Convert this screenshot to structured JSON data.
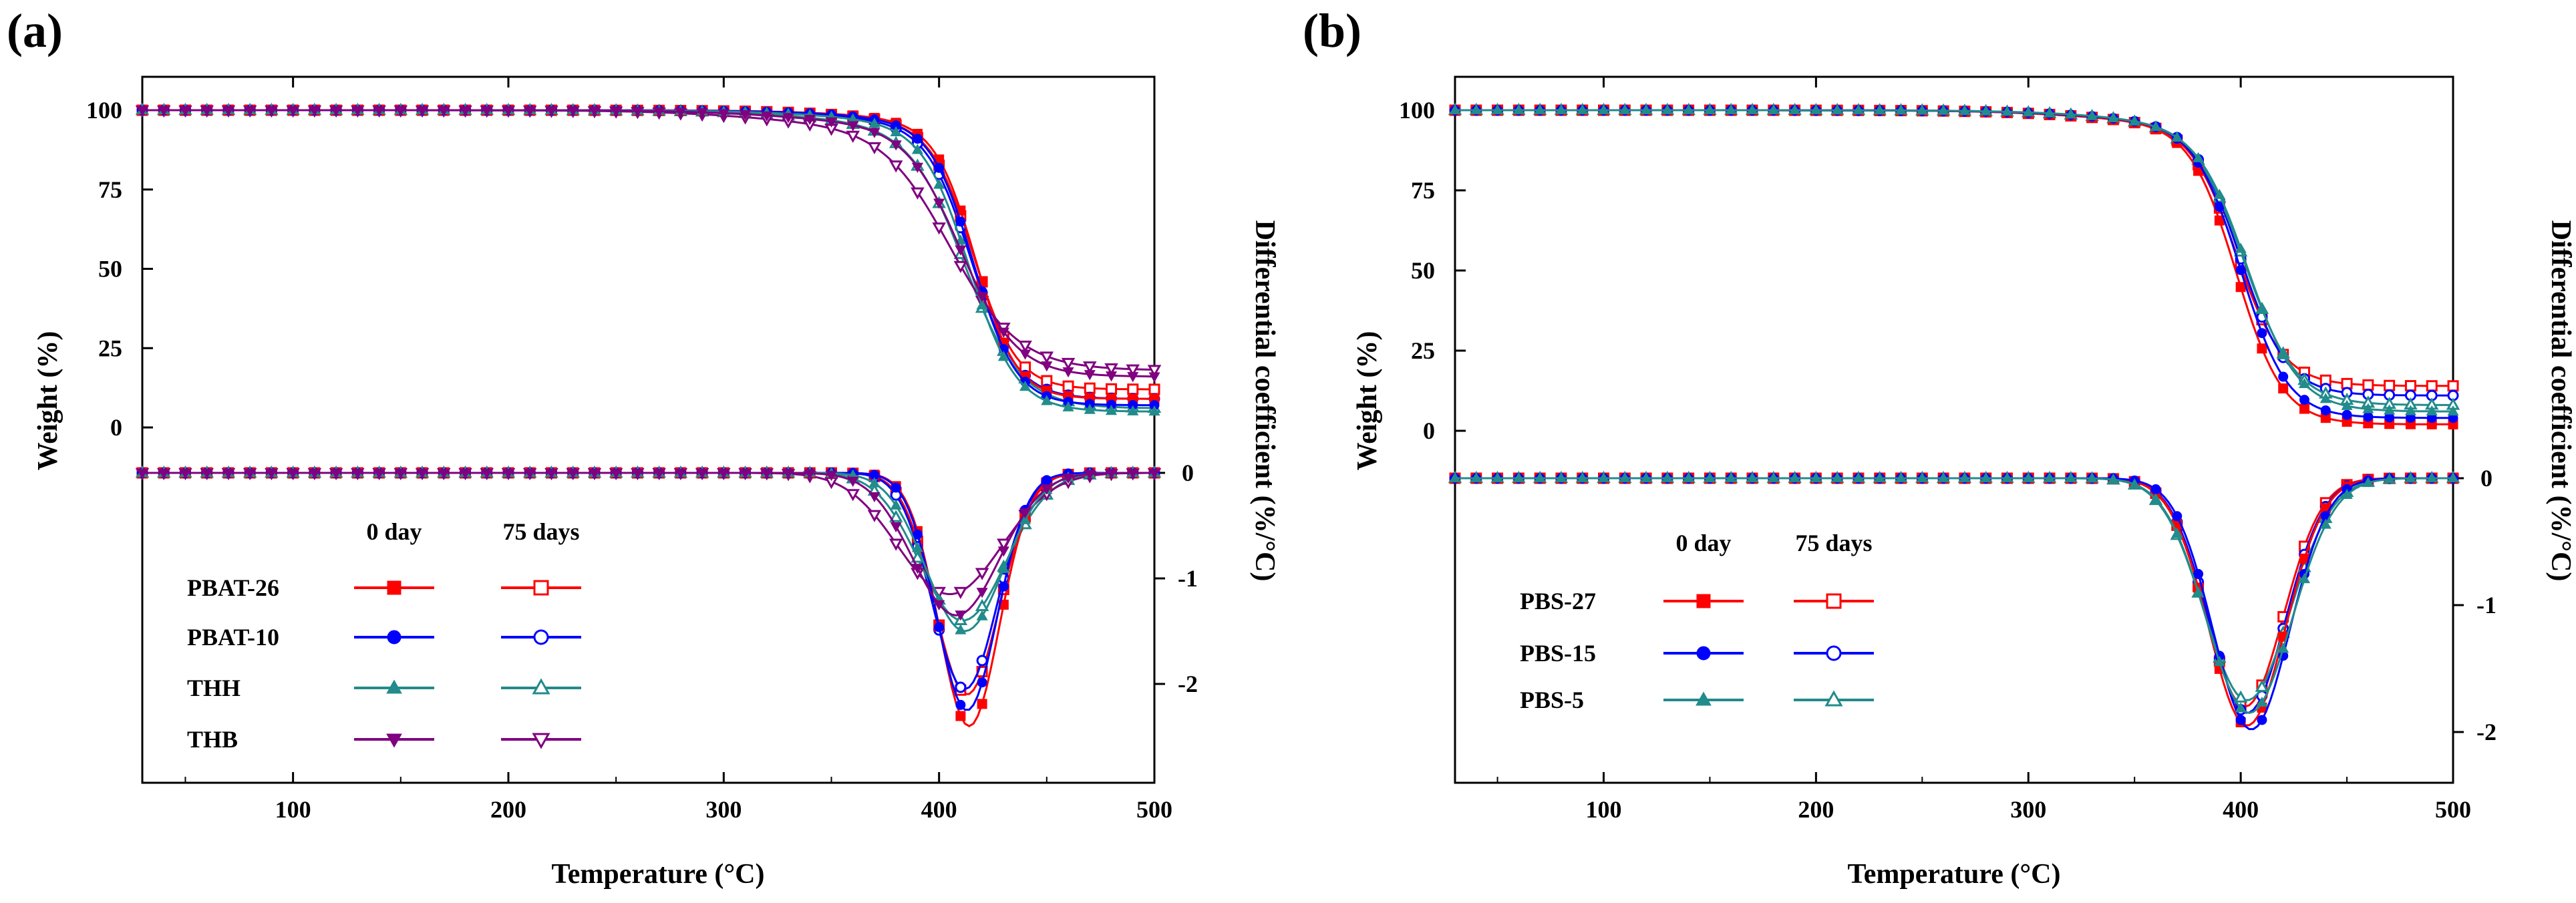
{
  "chart_data": [
    {
      "type": "line",
      "panel_label": "(a)",
      "xlabel": "Temperature (°C)",
      "ylabel_left": "Weight (%)",
      "ylabel_right": "Differential coefficient (%/°C)",
      "xlim": [
        30,
        500
      ],
      "xticks": [
        100,
        200,
        300,
        400,
        500
      ],
      "weight_ylim": [
        -5,
        105
      ],
      "weight_yticks": [
        0,
        25,
        50,
        75,
        100
      ],
      "deriv_yticks": [
        0,
        -1,
        -2
      ],
      "legend": {
        "header_0": "0 day",
        "header_75": "75 days",
        "placement": "lower-left"
      },
      "series": [
        {
          "name": "PBAT-26",
          "color": "#ff0000",
          "marker": "square",
          "tg": {
            "T_onset": 375,
            "T_mid": 417,
            "width": 9.5,
            "residue": 9
          },
          "dtg": {
            "peak_T": 414,
            "peak": -2.4,
            "width": 14
          }
        },
        {
          "name": "PBAT-10",
          "color": "#0000ff",
          "marker": "circle",
          "tg": {
            "T_onset": 370,
            "T_mid": 416,
            "width": 10,
            "residue": 7
          },
          "dtg": {
            "peak_T": 413,
            "peak": -2.25,
            "width": 14
          }
        },
        {
          "name": "THH",
          "color": "#228b8b",
          "marker": "triangle-up",
          "tg": {
            "T_onset": 355,
            "T_mid": 414,
            "width": 11,
            "residue": 5
          },
          "dtg": {
            "peak_T": 412,
            "peak": -1.5,
            "width": 18
          }
        },
        {
          "name": "THB",
          "color": "#800080",
          "marker": "triangle-down",
          "tg": {
            "T_onset": 330,
            "T_mid": 410,
            "width": 13,
            "residue": 16
          },
          "dtg": {
            "peak_T": 408,
            "peak": -1.35,
            "width": 20
          }
        }
      ],
      "series_75": [
        {
          "name": "PBAT-26",
          "color": "#ff0000",
          "marker": "square-open",
          "tg": {
            "T_onset": 370,
            "T_mid": 416,
            "width": 10,
            "residue": 12
          },
          "dtg": {
            "peak_T": 413,
            "peak": -2.1,
            "width": 15
          }
        },
        {
          "name": "PBAT-10",
          "color": "#0000ff",
          "marker": "circle-open",
          "tg": {
            "T_onset": 362,
            "T_mid": 415,
            "width": 10.5,
            "residue": 9
          },
          "dtg": {
            "peak_T": 412,
            "peak": -2.05,
            "width": 15
          }
        },
        {
          "name": "THH",
          "color": "#228b8b",
          "marker": "triangle-up-open",
          "tg": {
            "T_onset": 340,
            "T_mid": 412,
            "width": 13,
            "residue": 6
          },
          "dtg": {
            "peak_T": 411,
            "peak": -1.4,
            "width": 20
          }
        },
        {
          "name": "THB",
          "color": "#800080",
          "marker": "triangle-down-open",
          "tg": {
            "T_onset": 310,
            "T_mid": 405,
            "width": 16,
            "residue": 18
          },
          "dtg": {
            "peak_T": 405,
            "peak": -1.15,
            "width": 24
          }
        }
      ]
    },
    {
      "type": "line",
      "panel_label": "(b)",
      "xlabel": "Temperature (°C)",
      "ylabel_left": "Weight (%)",
      "ylabel_right": "Differential coefficient (%/°C)",
      "xlim": [
        30,
        500
      ],
      "xticks": [
        100,
        200,
        300,
        400,
        500
      ],
      "weight_ylim": [
        -5,
        105
      ],
      "weight_yticks": [
        0,
        25,
        50,
        75,
        100
      ],
      "deriv_yticks": [
        0,
        -1,
        -2
      ],
      "legend": {
        "header_0": "0 day",
        "header_75": "75 days",
        "placement": "lower-left"
      },
      "series": [
        {
          "name": "PBS-27",
          "color": "#ff0000",
          "marker": "square",
          "tg": {
            "T_onset": 330,
            "T_mid": 398,
            "width": 11,
            "residue": 2
          },
          "dtg": {
            "peak_T": 403,
            "peak": -1.95,
            "width": 18
          }
        },
        {
          "name": "PBS-15",
          "color": "#0000ff",
          "marker": "circle",
          "tg": {
            "T_onset": 335,
            "T_mid": 400,
            "width": 11,
            "residue": 4
          },
          "dtg": {
            "peak_T": 405,
            "peak": -1.98,
            "width": 18
          }
        },
        {
          "name": "PBS-5",
          "color": "#228b8b",
          "marker": "triangle-up",
          "tg": {
            "T_onset": 340,
            "T_mid": 403,
            "width": 12,
            "residue": 6
          },
          "dtg": {
            "peak_T": 404,
            "peak": -1.85,
            "width": 20
          }
        }
      ],
      "series_75": [
        {
          "name": "PBS-27",
          "color": "#ff0000",
          "marker": "square-open",
          "tg": {
            "T_onset": 328,
            "T_mid": 398,
            "width": 11,
            "residue": 14
          },
          "dtg": {
            "peak_T": 402,
            "peak": -1.8,
            "width": 18
          }
        },
        {
          "name": "PBS-15",
          "color": "#0000ff",
          "marker": "circle-open",
          "tg": {
            "T_onset": 332,
            "T_mid": 400,
            "width": 11,
            "residue": 11
          },
          "dtg": {
            "peak_T": 403,
            "peak": -1.85,
            "width": 18
          }
        },
        {
          "name": "PBS-5",
          "color": "#228b8b",
          "marker": "triangle-up-open",
          "tg": {
            "T_onset": 338,
            "T_mid": 402,
            "width": 12,
            "residue": 8
          },
          "dtg": {
            "peak_T": 403,
            "peak": -1.75,
            "width": 20
          }
        }
      ]
    }
  ]
}
